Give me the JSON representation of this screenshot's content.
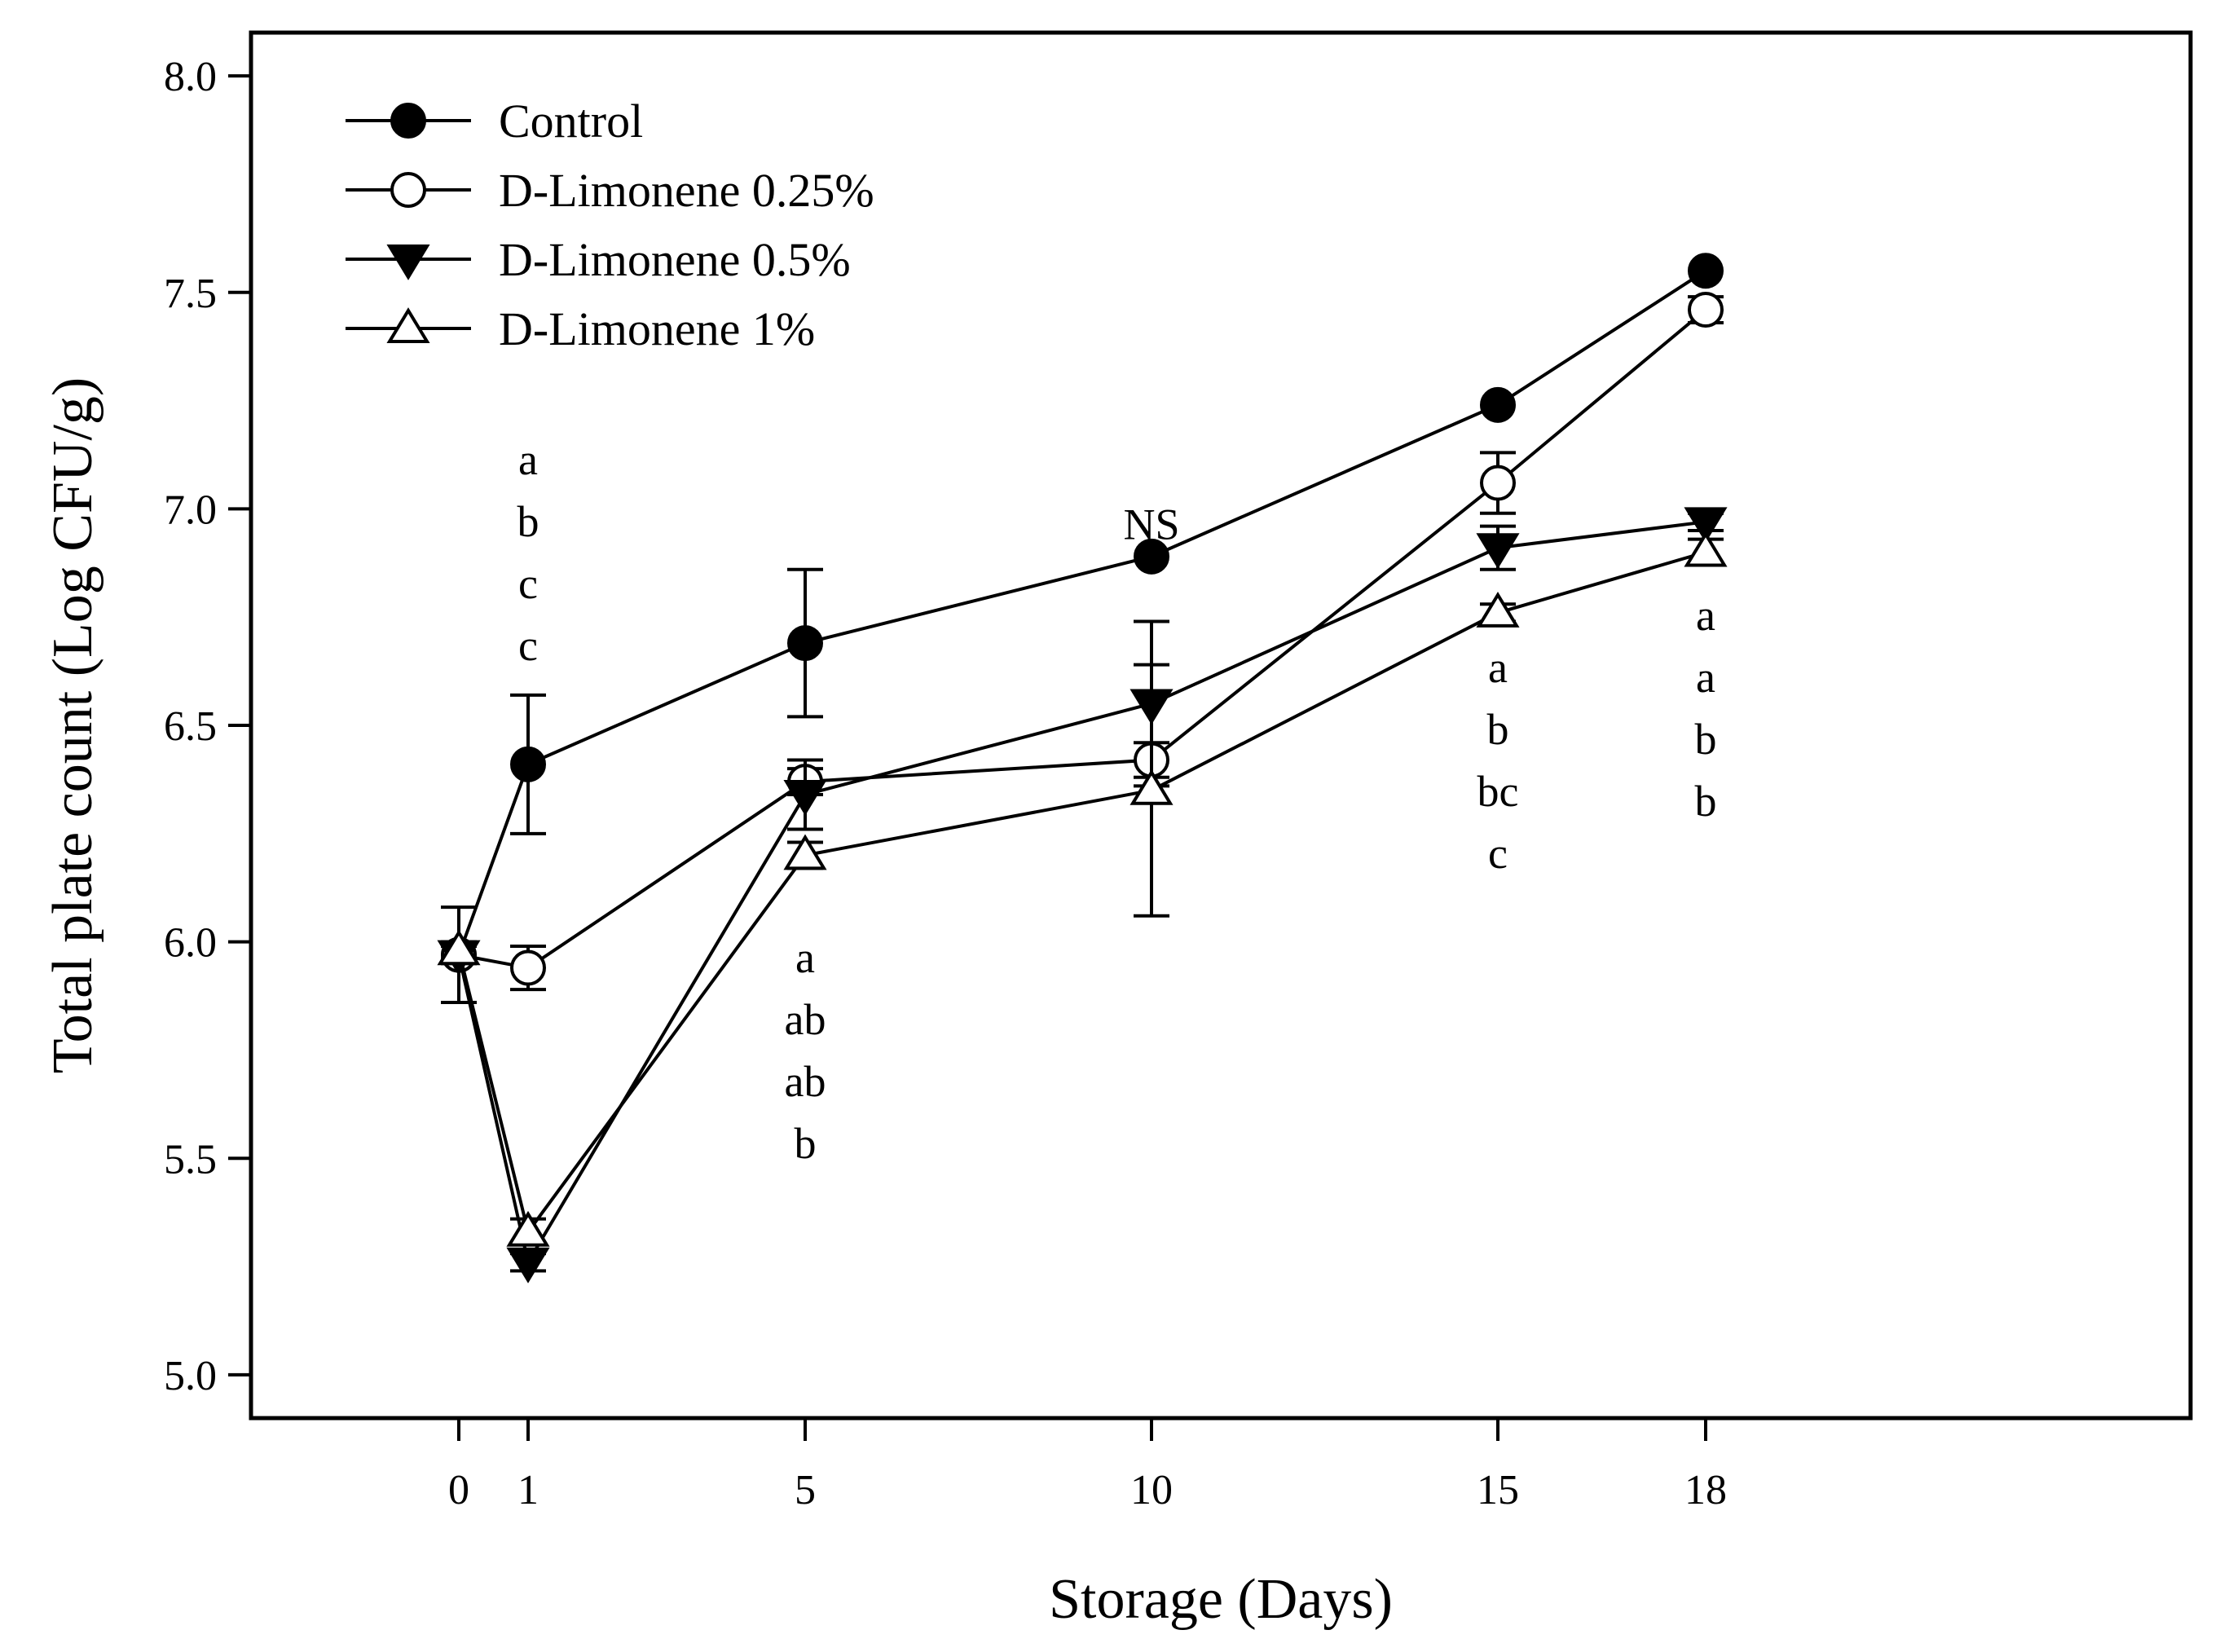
{
  "chart_data": {
    "type": "line",
    "xlabel": "Storage (Days)",
    "ylabel": "Total plate count (Log CFU/g)",
    "xlim": [
      -3,
      25
    ],
    "ylim": [
      4.9,
      8.1
    ],
    "x_ticks": [
      0,
      1,
      5,
      10,
      15,
      18
    ],
    "y_ticks": [
      5.0,
      5.5,
      6.0,
      6.5,
      7.0,
      7.5,
      8.0
    ],
    "y_tick_labels": [
      "5.0",
      "5.5",
      "6.0",
      "6.5",
      "7.0",
      "7.5",
      "8.0"
    ],
    "x": [
      0,
      1,
      5,
      10,
      15,
      18
    ],
    "legend_position": "top-left",
    "series": [
      {
        "name": "Control",
        "marker": "circle-filled",
        "values": [
          5.97,
          6.41,
          6.69,
          6.89,
          7.24,
          7.55
        ],
        "errors": [
          0.11,
          0.16,
          0.17,
          0.01,
          0.01,
          0.01
        ]
      },
      {
        "name": "D-Limonene 0.25%",
        "marker": "circle-open",
        "values": [
          5.97,
          5.94,
          6.37,
          6.42,
          7.06,
          7.46
        ],
        "errors": [
          0.02,
          0.05,
          0.03,
          0.04,
          0.07,
          0.03
        ]
      },
      {
        "name": "D-Limonene 0.5%",
        "marker": "triangle-down-filled",
        "values": [
          5.97,
          5.26,
          6.34,
          6.55,
          6.91,
          6.97
        ],
        "errors": [
          0.02,
          0.02,
          0.08,
          0.19,
          0.05,
          0.02
        ]
      },
      {
        "name": "D-Limonene 1%",
        "marker": "triangle-up-open",
        "values": [
          5.98,
          5.33,
          6.2,
          6.35,
          6.76,
          6.9
        ],
        "errors": [
          0.02,
          0.03,
          0.03,
          0.29,
          0.02,
          0.03
        ]
      }
    ],
    "annotations": [
      {
        "x": 1,
        "y_top": 7.08,
        "lines": [
          "a",
          "b",
          "c",
          "c"
        ]
      },
      {
        "x": 5,
        "y_top": 5.93,
        "lines": [
          "a",
          "ab",
          "ab",
          "b"
        ]
      },
      {
        "x": 10,
        "y_top": 6.93,
        "lines": [
          "NS"
        ]
      },
      {
        "x": 15,
        "y_top": 6.6,
        "lines": [
          "a",
          "b",
          "bc",
          "c"
        ]
      },
      {
        "x": 18,
        "y_top": 6.72,
        "lines": [
          "a",
          "a",
          "b",
          "b"
        ]
      }
    ]
  }
}
